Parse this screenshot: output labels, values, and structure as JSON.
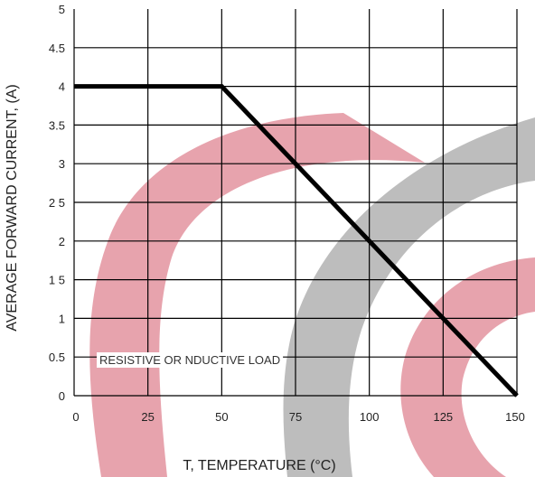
{
  "chart_data": {
    "type": "line",
    "xlabel": "T, TEMPERATURE (°C)",
    "ylabel": "AVERAGE FORWARD CURRENT, (A)",
    "x_ticks": [
      "0",
      "25",
      "50",
      "75",
      "100",
      "125",
      "150"
    ],
    "y_ticks": [
      "0",
      "0.5",
      "1",
      "1 5",
      "2",
      "2 5",
      "3",
      "3.5",
      "4",
      "4.5",
      "5"
    ],
    "xlim": [
      0,
      150
    ],
    "ylim": [
      0,
      5
    ],
    "grid": true,
    "annotation": "RESISTIVE OR  NDUCTIVE LOAD",
    "series": [
      {
        "x": [
          0,
          50,
          150
        ],
        "y": [
          4,
          4,
          0
        ]
      }
    ],
    "colors": {
      "line": "#000000",
      "grid": "#000000",
      "watermark_pink": "#e7a3ad",
      "watermark_gray": "#bdbdbd"
    }
  }
}
